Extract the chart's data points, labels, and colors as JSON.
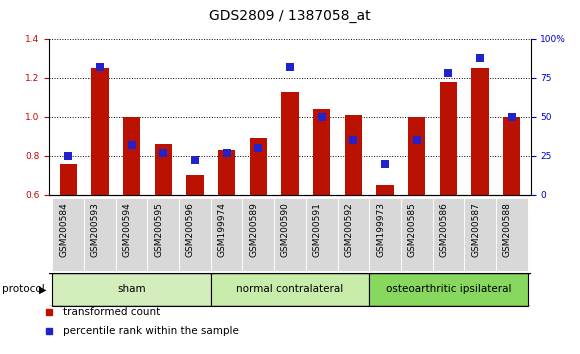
{
  "title": "GDS2809 / 1387058_at",
  "categories": [
    "GSM200584",
    "GSM200593",
    "GSM200594",
    "GSM200595",
    "GSM200596",
    "GSM199974",
    "GSM200589",
    "GSM200590",
    "GSM200591",
    "GSM200592",
    "GSM199973",
    "GSM200585",
    "GSM200586",
    "GSM200587",
    "GSM200588"
  ],
  "red_values": [
    0.76,
    1.25,
    1.0,
    0.86,
    0.7,
    0.83,
    0.89,
    1.13,
    1.04,
    1.01,
    0.65,
    1.0,
    1.18,
    1.25,
    1.0
  ],
  "blue_values": [
    25,
    82,
    32,
    27,
    22,
    27,
    30,
    82,
    50,
    35,
    20,
    35,
    78,
    88,
    50
  ],
  "groups": [
    {
      "label": "sham",
      "start": 0,
      "end": 5,
      "color": "#d4edbc"
    },
    {
      "label": "normal contralateral",
      "start": 5,
      "end": 10,
      "color": "#c8edaa"
    },
    {
      "label": "osteoarthritic ipsilateral",
      "start": 10,
      "end": 15,
      "color": "#88d860"
    }
  ],
  "ylim_left": [
    0.6,
    1.4
  ],
  "ylim_right": [
    0,
    100
  ],
  "yticks_left": [
    0.6,
    0.8,
    1.0,
    1.2,
    1.4
  ],
  "yticks_right": [
    0,
    25,
    50,
    75,
    100
  ],
  "ytick_labels_right": [
    "0",
    "25",
    "50",
    "75",
    "100%"
  ],
  "bar_color": "#bb1100",
  "dot_color": "#2222cc",
  "bar_width": 0.55,
  "dot_size": 28,
  "legend_items": [
    {
      "label": "transformed count",
      "color": "#bb1100"
    },
    {
      "label": "percentile rank within the sample",
      "color": "#2222cc"
    }
  ],
  "protocol_label": "protocol",
  "left_tick_color": "#cc0000",
  "right_tick_color": "#0000cc",
  "bg_color": "#ffffff",
  "title_fontsize": 10,
  "tick_fontsize": 6.5,
  "label_fontsize": 8,
  "xtick_bg": "#d8d8d8"
}
